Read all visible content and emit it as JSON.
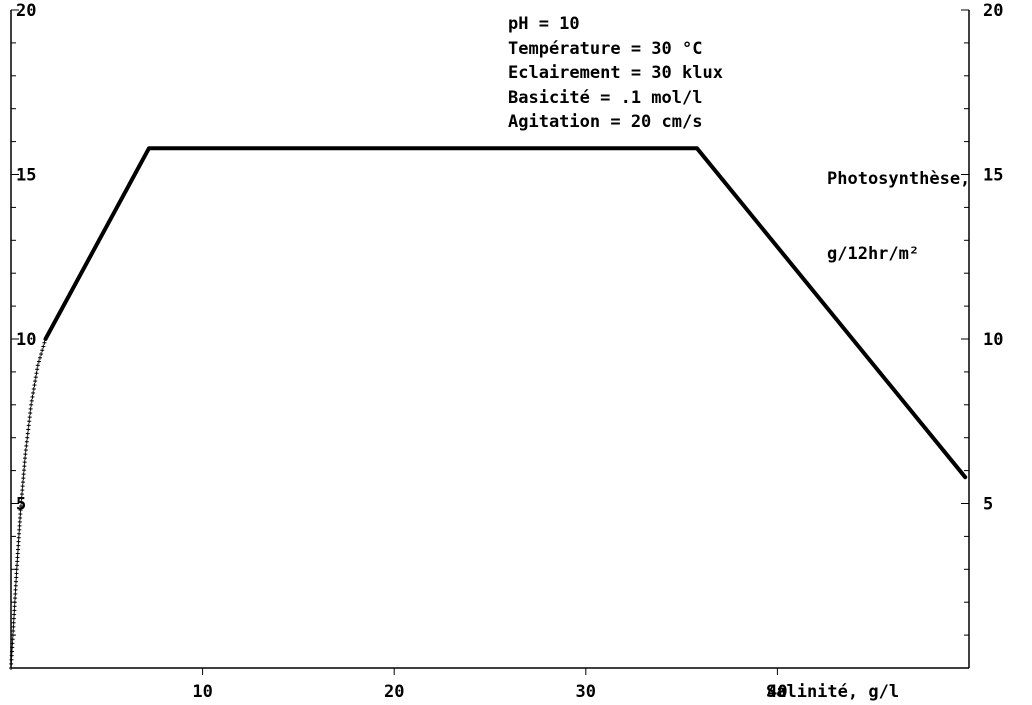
{
  "chart_data": {
    "type": "line",
    "title": "",
    "xlabel": "Salinité, g/l",
    "ylabel_lines": [
      "Photosynthèse,",
      "g/12hr/m²"
    ],
    "xlim": [
      0,
      50
    ],
    "ylim": [
      0,
      20
    ],
    "x_ticks": [
      "10",
      "20",
      "30",
      "40"
    ],
    "y_ticks_left": [
      "20",
      "15",
      "10",
      "5"
    ],
    "y_ticks_right": [
      "20",
      "15",
      "10",
      "5"
    ],
    "annotations": [
      "pH = 10",
      "Température = 30 °C",
      "Eclairement = 30 klux",
      "Basicité = .1 mol/l",
      "Agitation = 20 cm/s"
    ],
    "grid": false,
    "series": [
      {
        "style": "solid",
        "x": [
          1.8,
          7.2,
          35.8,
          49.8
        ],
        "y": [
          10.0,
          15.8,
          15.8,
          5.8
        ]
      },
      {
        "style": "dotted",
        "x": [
          0.0,
          0.05,
          0.15,
          0.3,
          0.5,
          0.75,
          1.05,
          1.4,
          1.8
        ],
        "y": [
          0.0,
          0.5,
          1.5,
          3.0,
          4.8,
          6.5,
          8.0,
          9.2,
          10.0
        ]
      }
    ]
  }
}
